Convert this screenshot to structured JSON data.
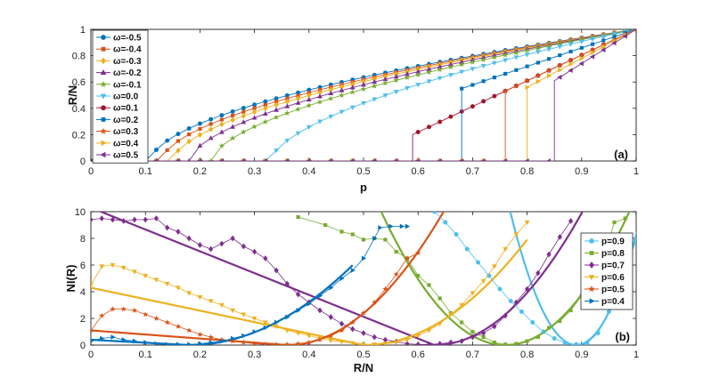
{
  "colors": {
    "blue": "#0072BD",
    "orange": "#D95319",
    "yellow": "#EDB120",
    "purple": "#7E2F8E",
    "green": "#77AC30",
    "cyan": "#4DBEEE",
    "red": "#A2142F"
  },
  "chart_data": [
    {
      "type": "line",
      "panel_label": "(a)",
      "xlabel": "p",
      "ylabel": "R/N",
      "xlim": [
        0,
        1
      ],
      "ylim": [
        0,
        1
      ],
      "xticks": [
        "0",
        "0.1",
        "0.2",
        "0.3",
        "0.4",
        "0.5",
        "0.6",
        "0.7",
        "0.8",
        "0.9",
        "1"
      ],
      "yticks": [
        "0",
        "0.2",
        "0.4",
        "0.6",
        "0.8",
        "1"
      ],
      "legend_position": "top-left",
      "series": [
        {
          "name": "ω=-0.5",
          "omega": -0.5,
          "pc": 0.11,
          "marker": "circle",
          "color": "#0072BD"
        },
        {
          "name": "ω=-0.4",
          "omega": -0.4,
          "pc": 0.13,
          "marker": "square",
          "color": "#D95319"
        },
        {
          "name": "ω=-0.3",
          "omega": -0.3,
          "pc": 0.15,
          "marker": "diamond",
          "color": "#EDB120"
        },
        {
          "name": "ω=-0.2",
          "omega": -0.2,
          "pc": 0.18,
          "marker": "triangle-up",
          "color": "#7E2F8E"
        },
        {
          "name": "ω=-0.1",
          "omega": -0.1,
          "pc": 0.22,
          "marker": "star",
          "color": "#77AC30"
        },
        {
          "name": "ω=0.0",
          "omega": 0.0,
          "pc": 0.33,
          "marker": "triangle-down",
          "color": "#4DBEEE"
        },
        {
          "name": "ω=0.1",
          "omega": 0.1,
          "pc": 0.59,
          "jump": 0.2,
          "marker": "circle",
          "color": "#A2142F"
        },
        {
          "name": "ω=0.2",
          "omega": 0.2,
          "pc": 0.68,
          "jump": 0.55,
          "marker": "square",
          "color": "#0072BD"
        },
        {
          "name": "ω=0.3",
          "omega": 0.3,
          "pc": 0.76,
          "jump": 0.53,
          "marker": "star",
          "color": "#D95319"
        },
        {
          "name": "ω=0.4",
          "omega": 0.4,
          "pc": 0.8,
          "jump": 0.56,
          "marker": "triangle-right",
          "color": "#EDB120"
        },
        {
          "name": "ω=0.5",
          "omega": 0.5,
          "pc": 0.85,
          "jump": 0.61,
          "marker": "triangle-left",
          "color": "#7E2F8E"
        }
      ]
    },
    {
      "type": "line",
      "panel_label": "(b)",
      "xlabel": "R/N",
      "ylabel": "NI(R)",
      "xlim": [
        0,
        1
      ],
      "ylim": [
        0,
        10
      ],
      "xticks": [
        "0",
        "0.1",
        "0.2",
        "0.3",
        "0.4",
        "0.5",
        "0.6",
        "0.7",
        "0.8",
        "0.9",
        "1"
      ],
      "yticks": [
        "0",
        "2",
        "4",
        "6",
        "8",
        "10"
      ],
      "legend_position": "right",
      "series": [
        {
          "name": "p=0.9",
          "p": 0.9,
          "min_x": 0.89,
          "marker": "circle",
          "color": "#4DBEEE",
          "x": [
            0.63,
            0.65,
            0.67,
            0.69,
            0.71,
            0.73,
            0.75,
            0.77,
            0.79,
            0.81,
            0.83,
            0.85,
            0.87,
            0.89,
            0.91,
            0.93,
            0.95,
            0.97,
            0.99,
            1.0
          ],
          "y": [
            10,
            9.2,
            8.3,
            7.2,
            6.2,
            5.2,
            4.2,
            3.3,
            2.5,
            1.7,
            1.0,
            0.5,
            0.15,
            0.05,
            0.15,
            0.9,
            2.5,
            4.6,
            6.8,
            7.8
          ]
        },
        {
          "name": "p=0.8",
          "p": 0.8,
          "min_x": 0.76,
          "marker": "square",
          "color": "#77AC30",
          "x": [
            0.38,
            0.43,
            0.46,
            0.48,
            0.5,
            0.52,
            0.54,
            0.56,
            0.58,
            0.6,
            0.62,
            0.64,
            0.66,
            0.68,
            0.7,
            0.72,
            0.74,
            0.76,
            0.78,
            0.8,
            0.82,
            0.84,
            0.86,
            0.88,
            0.9,
            0.92,
            0.94,
            0.96,
            0.98
          ],
          "y": [
            9.6,
            9.0,
            8.5,
            8.3,
            7.9,
            8.0,
            7.9,
            7.0,
            6.5,
            5.2,
            4.5,
            3.5,
            2.4,
            1.7,
            1.0,
            0.6,
            0.2,
            0.05,
            0.1,
            0.3,
            0.6,
            1.3,
            1.8,
            2.6,
            3.7,
            5.0,
            6.5,
            9.2,
            9.5
          ]
        },
        {
          "name": "p=0.7",
          "p": 0.7,
          "min_x": 0.63,
          "marker": "diamond",
          "color": "#7E2F8E",
          "x": [
            0.0,
            0.02,
            0.04,
            0.06,
            0.08,
            0.1,
            0.12,
            0.14,
            0.16,
            0.18,
            0.2,
            0.22,
            0.24,
            0.26,
            0.28,
            0.3,
            0.32,
            0.34,
            0.36,
            0.38,
            0.4,
            0.42,
            0.44,
            0.46,
            0.48,
            0.5,
            0.52,
            0.54,
            0.56,
            0.58,
            0.6,
            0.62,
            0.64,
            0.66,
            0.68,
            0.7,
            0.72,
            0.74,
            0.76,
            0.78,
            0.8,
            0.82,
            0.84,
            0.86,
            0.88
          ],
          "y": [
            9.4,
            9.5,
            9.4,
            9.3,
            9.4,
            9.4,
            9.5,
            8.8,
            8.5,
            8.0,
            7.5,
            7.2,
            7.6,
            8.0,
            7.4,
            7.0,
            6.5,
            5.6,
            4.6,
            3.8,
            3.2,
            2.6,
            2.1,
            1.6,
            1.2,
            0.9,
            0.6,
            0.4,
            0.25,
            0.1,
            0.05,
            0.05,
            0.1,
            0.2,
            0.3,
            0.6,
            0.9,
            1.4,
            2.2,
            3.2,
            4.2,
            5.4,
            6.8,
            8.1,
            9.3
          ]
        },
        {
          "name": "p=0.6",
          "p": 0.6,
          "min_x": 0.5,
          "marker": "triangle-down",
          "color": "#EDB120",
          "x": [
            0.0,
            0.02,
            0.04,
            0.06,
            0.08,
            0.1,
            0.12,
            0.14,
            0.16,
            0.18,
            0.2,
            0.22,
            0.24,
            0.26,
            0.28,
            0.3,
            0.32,
            0.34,
            0.36,
            0.38,
            0.4,
            0.42,
            0.44,
            0.46,
            0.48,
            0.5,
            0.52,
            0.54,
            0.56,
            0.58,
            0.6,
            0.62,
            0.64,
            0.66,
            0.68,
            0.7,
            0.72,
            0.74,
            0.76,
            0.78,
            0.8
          ],
          "y": [
            4.5,
            5.9,
            6.0,
            5.8,
            5.5,
            5.2,
            4.9,
            4.6,
            4.3,
            3.9,
            3.6,
            3.3,
            3.0,
            2.6,
            2.3,
            2.0,
            1.7,
            1.4,
            1.1,
            0.9,
            0.7,
            0.5,
            0.35,
            0.25,
            0.15,
            0.05,
            0.05,
            0.1,
            0.2,
            0.4,
            0.7,
            1.1,
            1.6,
            2.3,
            3.0,
            3.9,
            4.8,
            5.9,
            7.2,
            8.3,
            9.2
          ]
        },
        {
          "name": "p=0.5",
          "p": 0.5,
          "min_x": 0.36,
          "marker": "star",
          "color": "#D95319",
          "x": [
            0.0,
            0.02,
            0.04,
            0.06,
            0.08,
            0.1,
            0.12,
            0.14,
            0.16,
            0.18,
            0.2,
            0.22,
            0.24,
            0.26,
            0.28,
            0.3,
            0.32,
            0.34,
            0.36,
            0.38,
            0.4,
            0.42,
            0.44,
            0.46,
            0.48,
            0.5,
            0.52,
            0.54,
            0.56,
            0.58,
            0.6
          ],
          "y": [
            1.1,
            2.2,
            2.7,
            2.7,
            2.6,
            2.3,
            2.0,
            1.7,
            1.4,
            1.1,
            0.8,
            0.6,
            0.4,
            0.3,
            0.2,
            0.1,
            0.05,
            0.05,
            0.05,
            0.1,
            0.2,
            0.4,
            0.7,
            1.1,
            1.7,
            2.4,
            3.2,
            4.2,
            5.3,
            6.5,
            6.9
          ]
        },
        {
          "name": "p=0.4",
          "p": 0.4,
          "min_x": 0.18,
          "marker": "triangle-right",
          "color": "#0072BD",
          "x": [
            0.0,
            0.02,
            0.04,
            0.06,
            0.08,
            0.1,
            0.12,
            0.14,
            0.16,
            0.18,
            0.2,
            0.22,
            0.24,
            0.26,
            0.28,
            0.3,
            0.32,
            0.34,
            0.36,
            0.38,
            0.4,
            0.42,
            0.44,
            0.46,
            0.48,
            0.5,
            0.52,
            0.53,
            0.55,
            0.57,
            0.58
          ],
          "y": [
            0.3,
            0.5,
            0.6,
            0.4,
            0.3,
            0.2,
            0.1,
            0.05,
            0.05,
            0.05,
            0.1,
            0.2,
            0.3,
            0.5,
            0.7,
            1.0,
            1.3,
            1.7,
            2.1,
            2.6,
            3.1,
            3.7,
            4.3,
            5.0,
            5.6,
            6.5,
            8.0,
            8.8,
            8.9,
            8.9,
            8.9
          ]
        }
      ],
      "fit_lines": [
        {
          "series": "p=0.7",
          "type": "linear",
          "x0": 0.0,
          "y0": 10.3,
          "x1": 0.63,
          "y1": 0.0
        },
        {
          "series": "p=0.6",
          "type": "linear",
          "x0": 0.0,
          "y0": 4.3,
          "x1": 0.5,
          "y1": 0.0
        },
        {
          "series": "p=0.5",
          "type": "linear",
          "x0": 0.0,
          "y0": 1.1,
          "x1": 0.36,
          "y1": 0.0
        },
        {
          "series": "p=0.4",
          "type": "linear",
          "x0": 0.0,
          "y0": 0.4,
          "x1": 0.18,
          "y1": 0.0
        }
      ]
    }
  ]
}
